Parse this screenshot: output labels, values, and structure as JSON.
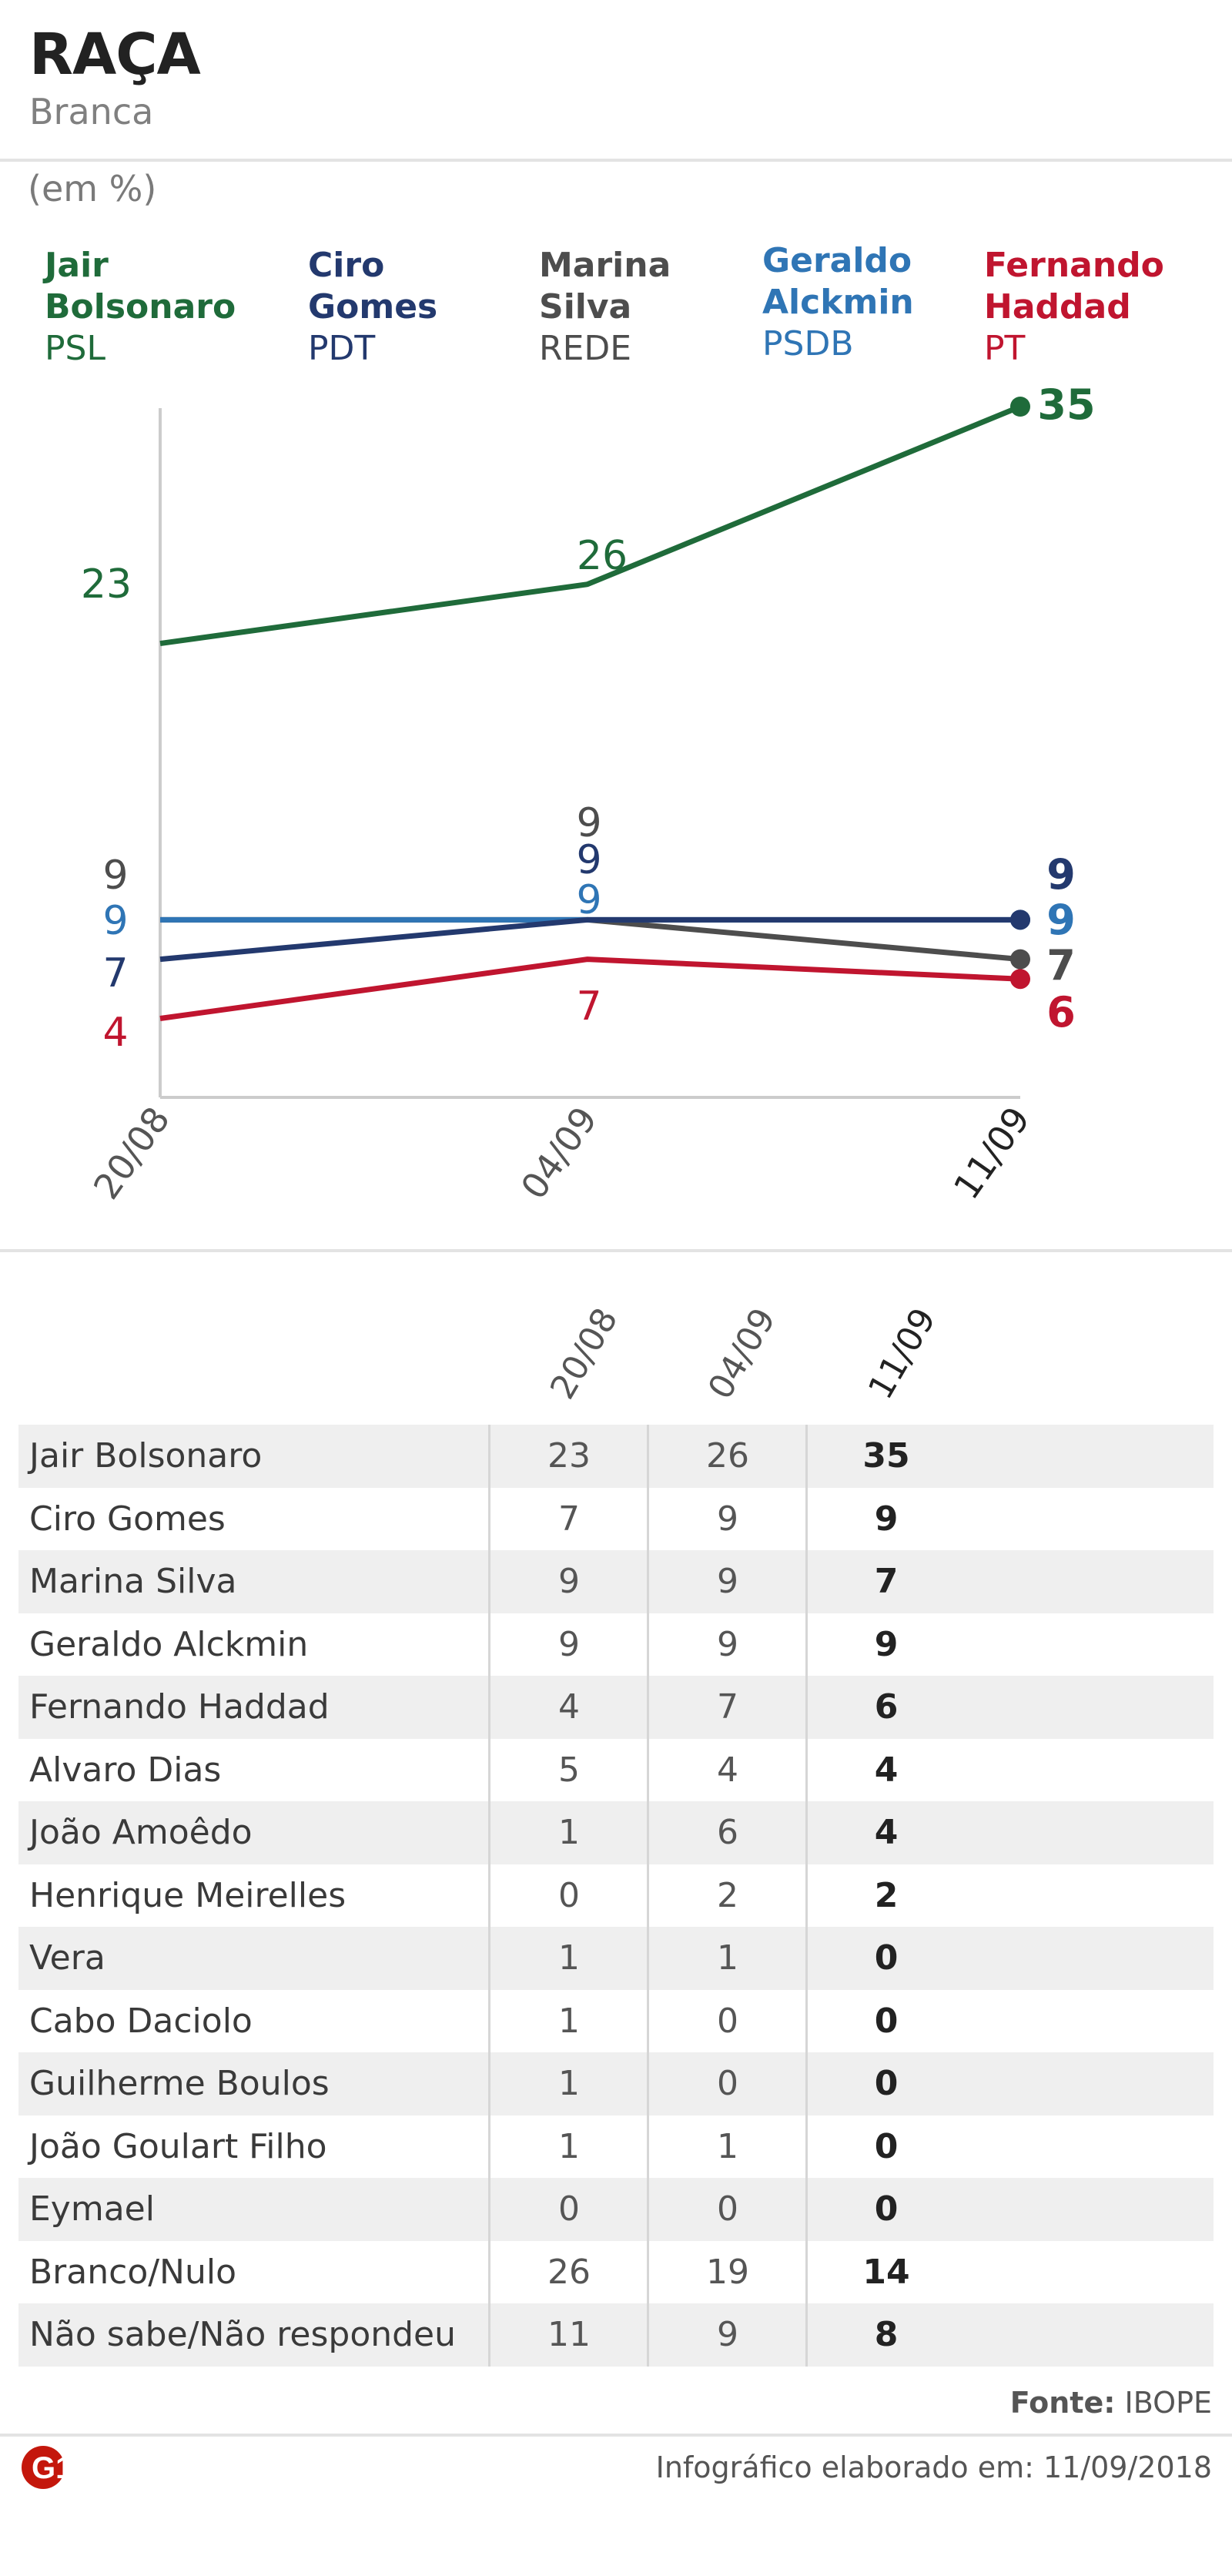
{
  "header": {
    "title": "RAÇA",
    "subtitle": "Branca",
    "unit": "(em %)"
  },
  "legend": [
    {
      "name": "Jair\nBolsonaro",
      "party": "PSL",
      "color": "#1f6b3a"
    },
    {
      "name": "Ciro\nGomes",
      "party": "PDT",
      "color": "#23396e"
    },
    {
      "name": "Marina\nSilva",
      "party": "REDE",
      "color": "#4d4d4d"
    },
    {
      "name": "Geraldo\nAlckmin",
      "party": "PSDB",
      "color": "#2f75b5"
    },
    {
      "name": "Fernando\nHaddad",
      "party": "PT",
      "color": "#c0152f"
    }
  ],
  "chart_data": {
    "type": "line",
    "x": [
      "20/08",
      "04/09",
      "11/09"
    ],
    "series": [
      {
        "name": "Jair Bolsonaro",
        "values": [
          23,
          26,
          35
        ],
        "color": "#1f6b3a"
      },
      {
        "name": "Ciro Gomes",
        "values": [
          7,
          9,
          9
        ],
        "color": "#23396e"
      },
      {
        "name": "Marina Silva",
        "values": [
          9,
          9,
          7
        ],
        "color": "#4d4d4d"
      },
      {
        "name": "Geraldo Alckmin",
        "values": [
          9,
          9,
          9
        ],
        "color": "#2f75b5"
      },
      {
        "name": "Fernando Haddad",
        "values": [
          4,
          7,
          6
        ],
        "color": "#c0152f"
      }
    ],
    "ylim": [
      0,
      35
    ]
  },
  "table": {
    "columns": [
      "20/08",
      "04/09",
      "11/09"
    ],
    "rows": [
      {
        "name": "Jair Bolsonaro",
        "values": [
          "23",
          "26",
          "35"
        ]
      },
      {
        "name": "Ciro Gomes",
        "values": [
          "7",
          "9",
          "9"
        ]
      },
      {
        "name": "Marina Silva",
        "values": [
          "9",
          "9",
          "7"
        ]
      },
      {
        "name": "Geraldo Alckmin",
        "values": [
          "9",
          "9",
          "9"
        ]
      },
      {
        "name": "Fernando Haddad",
        "values": [
          "4",
          "7",
          "6"
        ]
      },
      {
        "name": "Alvaro Dias",
        "values": [
          "5",
          "4",
          "4"
        ]
      },
      {
        "name": "João Amoêdo",
        "values": [
          "1",
          "6",
          "4"
        ]
      },
      {
        "name": "Henrique Meirelles",
        "values": [
          "0",
          "2",
          "2"
        ]
      },
      {
        "name": "Vera",
        "values": [
          "1",
          "1",
          "0"
        ]
      },
      {
        "name": "Cabo Daciolo",
        "values": [
          "1",
          "0",
          "0"
        ]
      },
      {
        "name": "Guilherme Boulos",
        "values": [
          "1",
          "0",
          "0"
        ]
      },
      {
        "name": "João Goulart Filho",
        "values": [
          "1",
          "1",
          "0"
        ]
      },
      {
        "name": "Eymael",
        "values": [
          "0",
          "0",
          "0"
        ]
      },
      {
        "name": "Branco/Nulo",
        "values": [
          "26",
          "19",
          "14"
        ]
      },
      {
        "name": "Não sabe/Não respondeu",
        "values": [
          "11",
          "9",
          "8"
        ]
      }
    ]
  },
  "footer": {
    "source_label": "Fonte:",
    "source_value": "IBOPE",
    "credit": "Infográfico elaborado em: 11/09/2018",
    "logo_text": "G1",
    "logo_color": "#c4170c"
  }
}
